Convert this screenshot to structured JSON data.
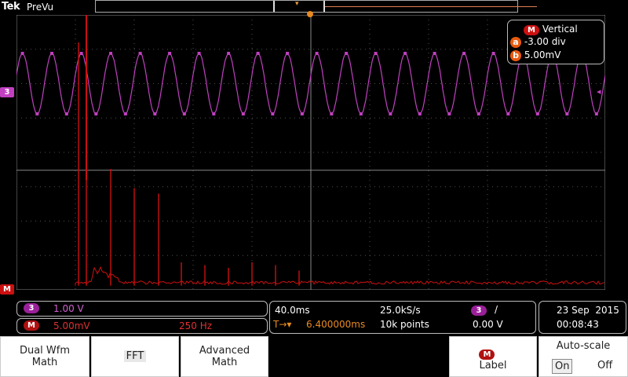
{
  "header": {
    "brand": "Tek",
    "mode": "PreVu"
  },
  "vertical_panel": {
    "badge": "M",
    "title": "Vertical",
    "a_label": "a",
    "a_value": "-3.00 div",
    "b_label": "b",
    "b_value": "5.00mV"
  },
  "markers": {
    "ch3": "3",
    "math": "M"
  },
  "status": {
    "ch3_badge": "3",
    "ch3_scale": "1.00 V",
    "math_badge": "M",
    "math_scale": "5.00mV",
    "math_freq": "250 Hz",
    "timebase": "40.0ms",
    "sample_rate": "25.0kS/s",
    "trigger_pos_icon": "T→▾",
    "trigger_pos": "6.400000ms",
    "record_length": "10k points",
    "trigger_src": "3",
    "trigger_slope": "/",
    "trigger_level": "0.00 V",
    "date": "23 Sep  2015",
    "time": "00:08:43"
  },
  "buttons": {
    "dual_wfm_math": [
      "Dual Wfm",
      "Math"
    ],
    "fft": "FFT",
    "advanced_math": [
      "Advanced",
      "Math"
    ],
    "label_badge": "M",
    "label": "Label",
    "autoscale_title": "Auto-scale",
    "autoscale_on": "On",
    "autoscale_off": "Off"
  },
  "colors": {
    "ch3": "#c040c0",
    "math": "#cc1010",
    "grid": "#505050",
    "accent": "#e88a20"
  },
  "chart_data": [
    {
      "type": "line",
      "series": [
        {
          "name": "3",
          "description": "sine wave",
          "cycles": 20
        }
      ]
    },
    {
      "type": "line",
      "series": [
        {
          "name": "M",
          "description": "FFT spectrum",
          "peaks": 6
        }
      ]
    }
  ]
}
